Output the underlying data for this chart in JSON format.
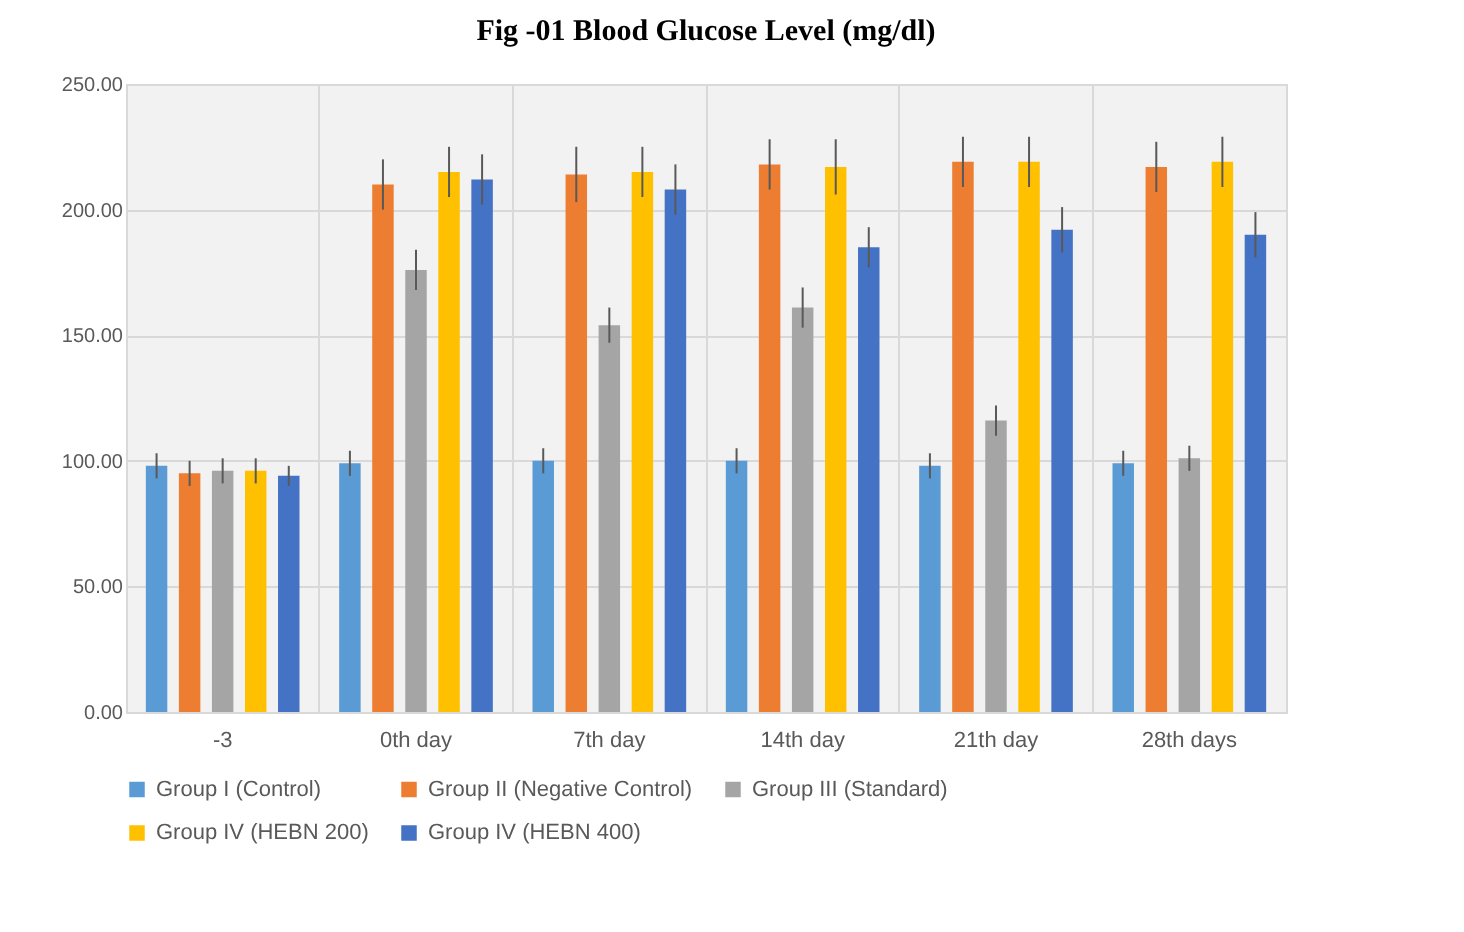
{
  "chart_data": {
    "type": "bar",
    "title": "Fig -01      Blood Glucose Level (mg/dl)",
    "categories": [
      "-3",
      "0th day",
      "7th day",
      "14th day",
      "21th day",
      "28th days"
    ],
    "series": [
      {
        "name": "Group I (Control)",
        "color": "#5b9bd5",
        "values": [
          98,
          99,
          100,
          100,
          98,
          99
        ],
        "errors": [
          5,
          5,
          5,
          5,
          5,
          5
        ]
      },
      {
        "name": "Group II (Negative Control)",
        "color": "#ed7d31",
        "values": [
          95,
          210,
          214,
          218,
          219,
          217
        ],
        "errors": [
          5,
          10,
          11,
          10,
          10,
          10
        ]
      },
      {
        "name": "Group III (Standard)",
        "color": "#a5a5a5",
        "values": [
          96,
          176,
          154,
          161,
          116,
          101
        ],
        "errors": [
          5,
          8,
          7,
          8,
          6,
          5
        ]
      },
      {
        "name": "Group IV (HEBN 200)",
        "color": "#ffc000",
        "values": [
          96,
          215,
          215,
          217,
          219,
          219
        ],
        "errors": [
          5,
          10,
          10,
          11,
          10,
          10
        ]
      },
      {
        "name": "Group IV (HEBN 400)",
        "color": "#4472c4",
        "values": [
          94,
          212,
          208,
          185,
          192,
          190
        ],
        "errors": [
          4,
          10,
          10,
          8,
          9,
          9
        ]
      }
    ],
    "ylim": [
      0,
      250
    ],
    "yticks": [
      {
        "value": 0,
        "label": "0.00"
      },
      {
        "value": 50,
        "label": "50.00"
      },
      {
        "value": 100,
        "label": "100.00"
      },
      {
        "value": 150,
        "label": "150.00"
      },
      {
        "value": 200,
        "label": "200.00"
      },
      {
        "value": 250,
        "label": "250.00"
      }
    ],
    "grid": true,
    "legend": "bottom"
  }
}
